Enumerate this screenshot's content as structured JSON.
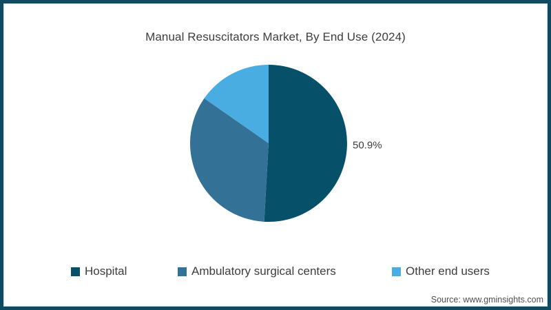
{
  "frame": {
    "border_color": "#0f4b60",
    "inner_line_color": "#cfe8f1",
    "background": "#ffffff"
  },
  "chart_data": {
    "type": "pie",
    "title": "Manual Resuscitators Market, By End Use (2024)",
    "start_angle_deg": 0,
    "direction": "clockwise",
    "legend_position": "bottom",
    "data_label_color": "#3d3d3d",
    "slices": [
      {
        "label": "Hospital",
        "value": 50.9,
        "color": "#06506a",
        "data_label": "50.9%"
      },
      {
        "label": "Ambulatory surgical centers",
        "value": 33.8,
        "color": "#337196",
        "data_label": ""
      },
      {
        "label": "Other end users",
        "value": 15.3,
        "color": "#4aade2",
        "data_label": ""
      }
    ]
  },
  "source_note": "Source: www.gminsights.com"
}
